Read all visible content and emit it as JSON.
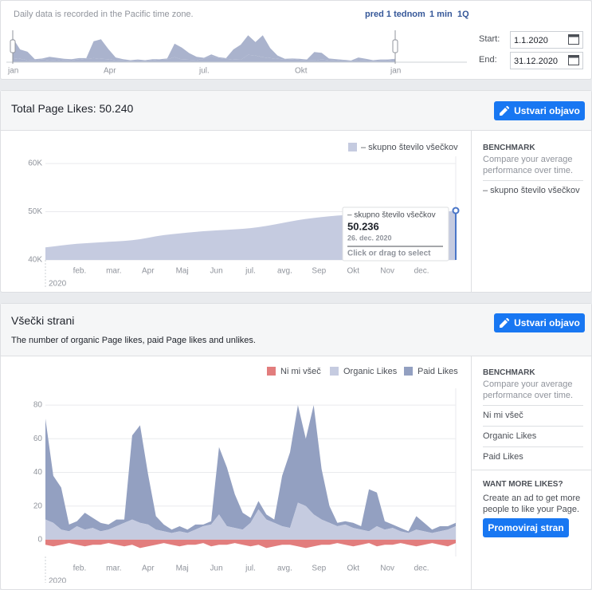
{
  "header": {
    "timezone_note": "Daily data is recorded in the Pacific time zone.",
    "range_links": [
      "pred 1 tednom",
      "1 min",
      "1Q"
    ],
    "overview_months": [
      "jan",
      "Apr",
      "jul.",
      "Okt",
      "jan"
    ],
    "start_label": "Start:",
    "start_value": "1.1.2020",
    "end_label": "End:",
    "end_value": "31.12.2020"
  },
  "page_likes": {
    "title": "Total Page Likes: 50.240",
    "button": "Ustvari objavo",
    "benchmark": {
      "title": "BENCHMARK",
      "text": "Compare your average performance over time."
    },
    "chart_data": {
      "type": "area",
      "legend": "top-right",
      "grid": true,
      "year": "2020",
      "x_axis_labels": [
        "feb.",
        "mar.",
        "Apr",
        "Maj",
        "Jun",
        "jul.",
        "avg.",
        "Sep",
        "Okt",
        "Nov",
        "dec."
      ],
      "series": [
        {
          "name": "– skupno število všečkov",
          "color": "#c5cbe0",
          "values": [
            42600,
            42800,
            43000,
            43200,
            43350,
            43450,
            43550,
            43650,
            43750,
            43850,
            43950,
            44100,
            44300,
            44600,
            44900,
            45150,
            45350,
            45500,
            45650,
            45800,
            45950,
            46050,
            46150,
            46250,
            46350,
            46450,
            46600,
            46800,
            47050,
            47350,
            47650,
            47950,
            48250,
            48500,
            48700,
            48900,
            49050,
            49200,
            49300,
            49350,
            49400,
            49450,
            49500,
            49550,
            49600,
            49650,
            49700,
            49750,
            49800,
            49850,
            49900,
            50050,
            50240
          ]
        }
      ],
      "ylim": [
        40000,
        61500
      ],
      "yticks": [
        {
          "value": 40000,
          "label": "40K"
        },
        {
          "value": 50000,
          "label": "50K"
        },
        {
          "value": 60000,
          "label": "60K"
        }
      ],
      "tooltip": {
        "series": "– skupno število všečkov",
        "value": 50236,
        "value_label": "50.236",
        "date": "26. dec. 2020",
        "hint": "Click or drag to select"
      }
    }
  },
  "page_likes_breakdown": {
    "title": "Všečki strani",
    "subtitle": "The number of organic Page likes, paid Page likes and unlikes.",
    "button": "Ustvari objavo",
    "benchmark": {
      "title": "BENCHMARK",
      "text": "Compare your average performance over time."
    },
    "promo": {
      "title": "WANT MORE LIKES?",
      "text": "Create an ad to get more people to like your Page.",
      "button": "Promoviraj stran"
    },
    "chart_data": {
      "type": "area",
      "legend": "top-right",
      "grid": true,
      "year": "2020",
      "x_axis_labels": [
        "feb.",
        "mar.",
        "Apr",
        "Maj",
        "Jun",
        "jul.",
        "avg.",
        "Sep",
        "Okt",
        "Nov",
        "dec."
      ],
      "series": [
        {
          "name": "Ni mi všeč",
          "color": "#e27d7d",
          "values": [
            -3,
            -4,
            -3,
            -2,
            -3,
            -4,
            -3,
            -3,
            -2,
            -3,
            -4,
            -3,
            -5,
            -4,
            -3,
            -2,
            -3,
            -4,
            -3,
            -3,
            -2,
            -4,
            -3,
            -3,
            -2,
            -3,
            -4,
            -3,
            -5,
            -4,
            -3,
            -3,
            -4,
            -5,
            -4,
            -3,
            -3,
            -2,
            -3,
            -4,
            -3,
            -2,
            -4,
            -3,
            -3,
            -2,
            -3,
            -4,
            -3,
            -2,
            -3,
            -4,
            -2
          ]
        },
        {
          "name": "Organic Likes",
          "color": "#c5cbe0",
          "values": [
            12,
            10,
            6,
            5,
            8,
            6,
            7,
            5,
            6,
            8,
            10,
            12,
            10,
            9,
            6,
            5,
            4,
            5,
            4,
            6,
            8,
            9,
            15,
            8,
            7,
            6,
            10,
            18,
            12,
            10,
            8,
            7,
            22,
            20,
            15,
            12,
            10,
            8,
            9,
            7,
            6,
            5,
            8,
            6,
            7,
            5,
            4,
            6,
            5,
            4,
            5,
            6,
            8
          ]
        },
        {
          "name": "Paid Likes",
          "color": "#93a0c1",
          "values": [
            60,
            28,
            25,
            4,
            3,
            10,
            6,
            5,
            3,
            4,
            2,
            50,
            58,
            30,
            8,
            4,
            2,
            3,
            2,
            3,
            1,
            2,
            40,
            35,
            20,
            10,
            3,
            5,
            3,
            2,
            30,
            45,
            58,
            40,
            65,
            30,
            10,
            2,
            2,
            3,
            2,
            25,
            20,
            5,
            2,
            2,
            1,
            8,
            5,
            2,
            3,
            2,
            2
          ]
        }
      ],
      "ylim": [
        -10,
        90
      ],
      "yticks": [
        0,
        20,
        40,
        60,
        80
      ]
    }
  }
}
